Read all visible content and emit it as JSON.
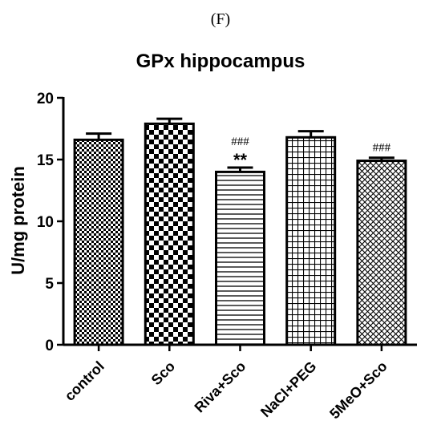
{
  "panel_label": "(F)",
  "chart_data": {
    "type": "bar",
    "title": "GPx hippocampus",
    "xlabel": "",
    "ylabel": "U/mg protein",
    "ylim": [
      0,
      20
    ],
    "yticks": [
      0,
      5,
      10,
      15,
      20
    ],
    "categories": [
      "control",
      "Sco",
      "Riva+Sco",
      "NaCl+PEG",
      "5MeO+Sco"
    ],
    "values": [
      16.6,
      17.9,
      14.0,
      16.8,
      14.9
    ],
    "errors": [
      0.5,
      0.4,
      0.35,
      0.5,
      0.25
    ],
    "patterns": [
      "fine-checker",
      "coarse-checker",
      "horizontal-lines",
      "grid",
      "diagonal-crosshatch"
    ],
    "annotations": [
      {
        "category": "Riva+Sco",
        "lines": [
          "###",
          "**"
        ]
      },
      {
        "category": "5MeO+Sco",
        "lines": [
          "###"
        ]
      }
    ],
    "grid": false,
    "legend": "none"
  }
}
